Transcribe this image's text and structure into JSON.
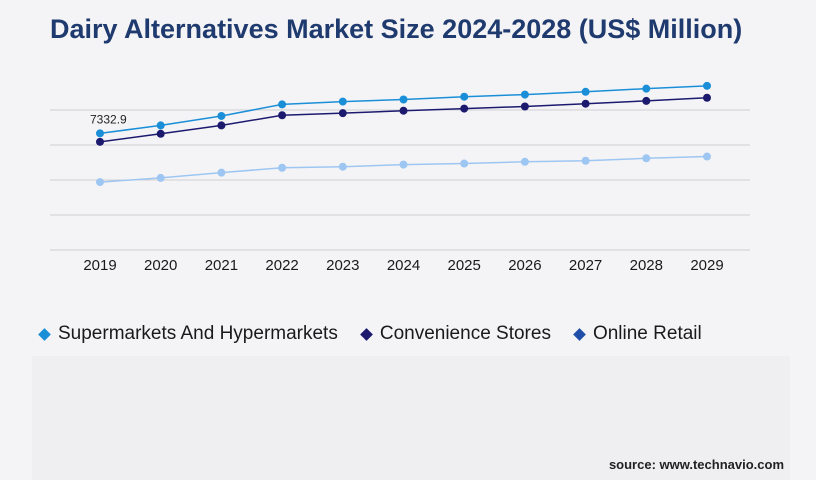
{
  "chart_data": {
    "type": "line",
    "title": "Dairy Alternatives Market Size 2024-2028 (US$ Million)",
    "x": [
      "2019",
      "2020",
      "2021",
      "2022",
      "2023",
      "2024",
      "2025",
      "2026",
      "2027",
      "2028",
      "2029"
    ],
    "series": [
      {
        "name": "Supermarkets And Hypermarkets",
        "color": "#1a8fd8",
        "values": [
          7332.9,
          7560,
          7830,
          8160,
          8240,
          8300,
          8380,
          8440,
          8520,
          8610,
          8690
        ]
      },
      {
        "name": "Convenience Stores",
        "color": "#1c1a6e",
        "values": [
          7090,
          7320,
          7560,
          7850,
          7910,
          7980,
          8040,
          8100,
          8180,
          8260,
          8350
        ]
      },
      {
        "name": "Online Retail",
        "color": "#9ec6f2",
        "values": [
          5940,
          6060,
          6210,
          6350,
          6380,
          6440,
          6470,
          6520,
          6550,
          6620,
          6670
        ]
      }
    ],
    "data_labels": [
      {
        "series": 0,
        "index": 0,
        "text": "7332.9"
      }
    ],
    "ylim": [
      4000,
      9000
    ],
    "grid": true,
    "legend": "bottom-left"
  },
  "legend": {
    "items": [
      {
        "label": "Supermarkets And Hypermarkets",
        "color": "#1a8fd8"
      },
      {
        "label": "Convenience Stores",
        "color": "#1c1a6e"
      },
      {
        "label": "Online Retail",
        "color": "#1f4fa8"
      }
    ]
  },
  "source": "source: www.technavio.com"
}
